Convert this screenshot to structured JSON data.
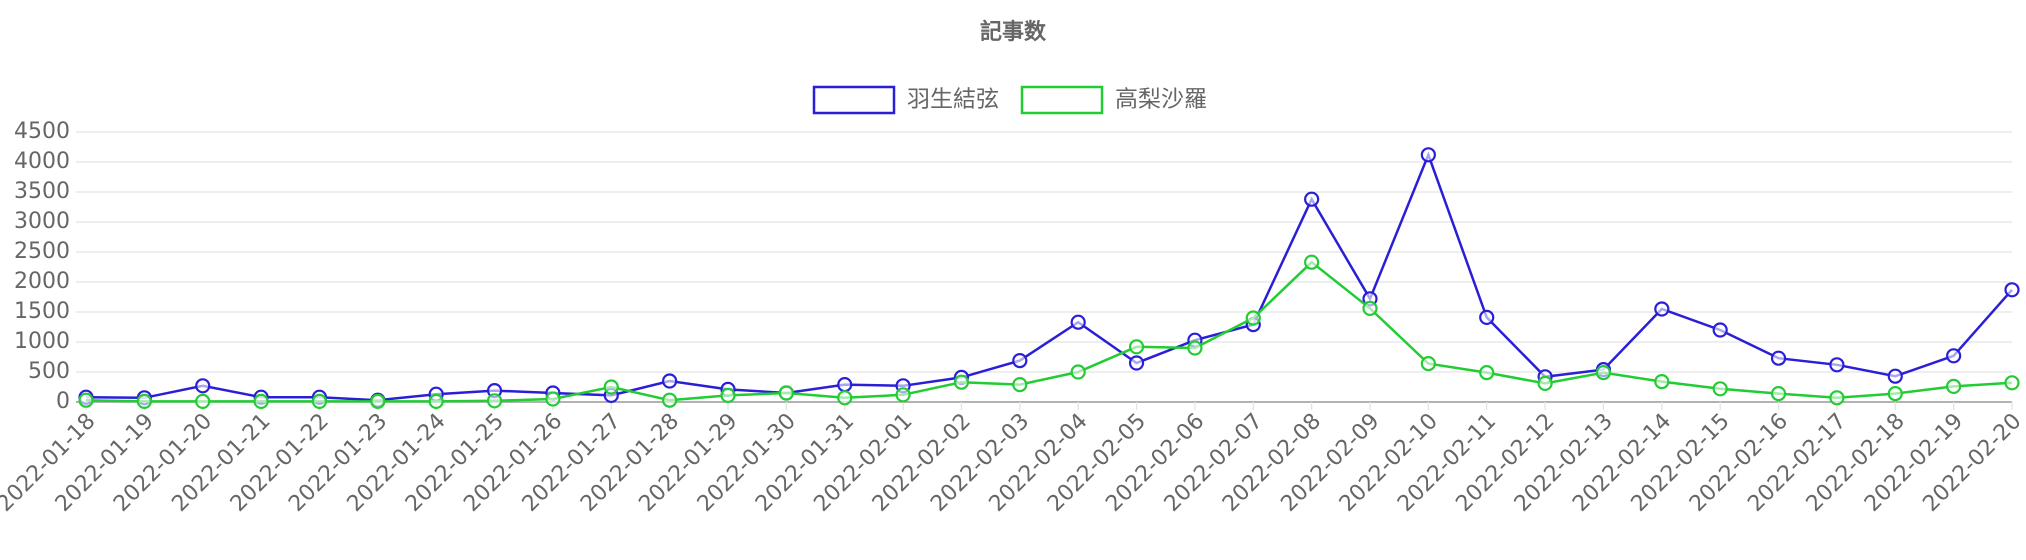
{
  "chart_data": {
    "type": "line",
    "title": "記事数",
    "categories": [
      "2022-01-18",
      "2022-01-19",
      "2022-01-20",
      "2022-01-21",
      "2022-01-22",
      "2022-01-23",
      "2022-01-24",
      "2022-01-25",
      "2022-01-26",
      "2022-01-27",
      "2022-01-28",
      "2022-01-29",
      "2022-01-30",
      "2022-01-31",
      "2022-02-01",
      "2022-02-02",
      "2022-02-03",
      "2022-02-04",
      "2022-02-05",
      "2022-02-06",
      "2022-02-07",
      "2022-02-08",
      "2022-02-09",
      "2022-02-10",
      "2022-02-11",
      "2022-02-12",
      "2022-02-13",
      "2022-02-14",
      "2022-02-15",
      "2022-02-16",
      "2022-02-17",
      "2022-02-18",
      "2022-02-19",
      "2022-02-20"
    ],
    "series": [
      {
        "name": "羽生結弦",
        "color": "#2a1fd6",
        "values": [
          80,
          70,
          270,
          80,
          80,
          30,
          130,
          190,
          150,
          110,
          350,
          210,
          150,
          290,
          270,
          410,
          690,
          1330,
          650,
          1030,
          1290,
          3380,
          1720,
          4120,
          1410,
          420,
          540,
          1550,
          1200,
          730,
          620,
          430,
          770,
          1870
        ]
      },
      {
        "name": "高梨沙羅",
        "color": "#22cc33",
        "values": [
          30,
          10,
          10,
          10,
          10,
          10,
          10,
          20,
          50,
          250,
          30,
          110,
          150,
          70,
          120,
          330,
          290,
          500,
          920,
          900,
          1400,
          2330,
          1560,
          640,
          490,
          310,
          490,
          340,
          220,
          140,
          70,
          140,
          260,
          320
        ]
      }
    ],
    "ylim": [
      0,
      4500
    ],
    "yticks": [
      0,
      500,
      1000,
      1500,
      2000,
      2500,
      3000,
      3500,
      4000,
      4500
    ],
    "grid": true
  }
}
